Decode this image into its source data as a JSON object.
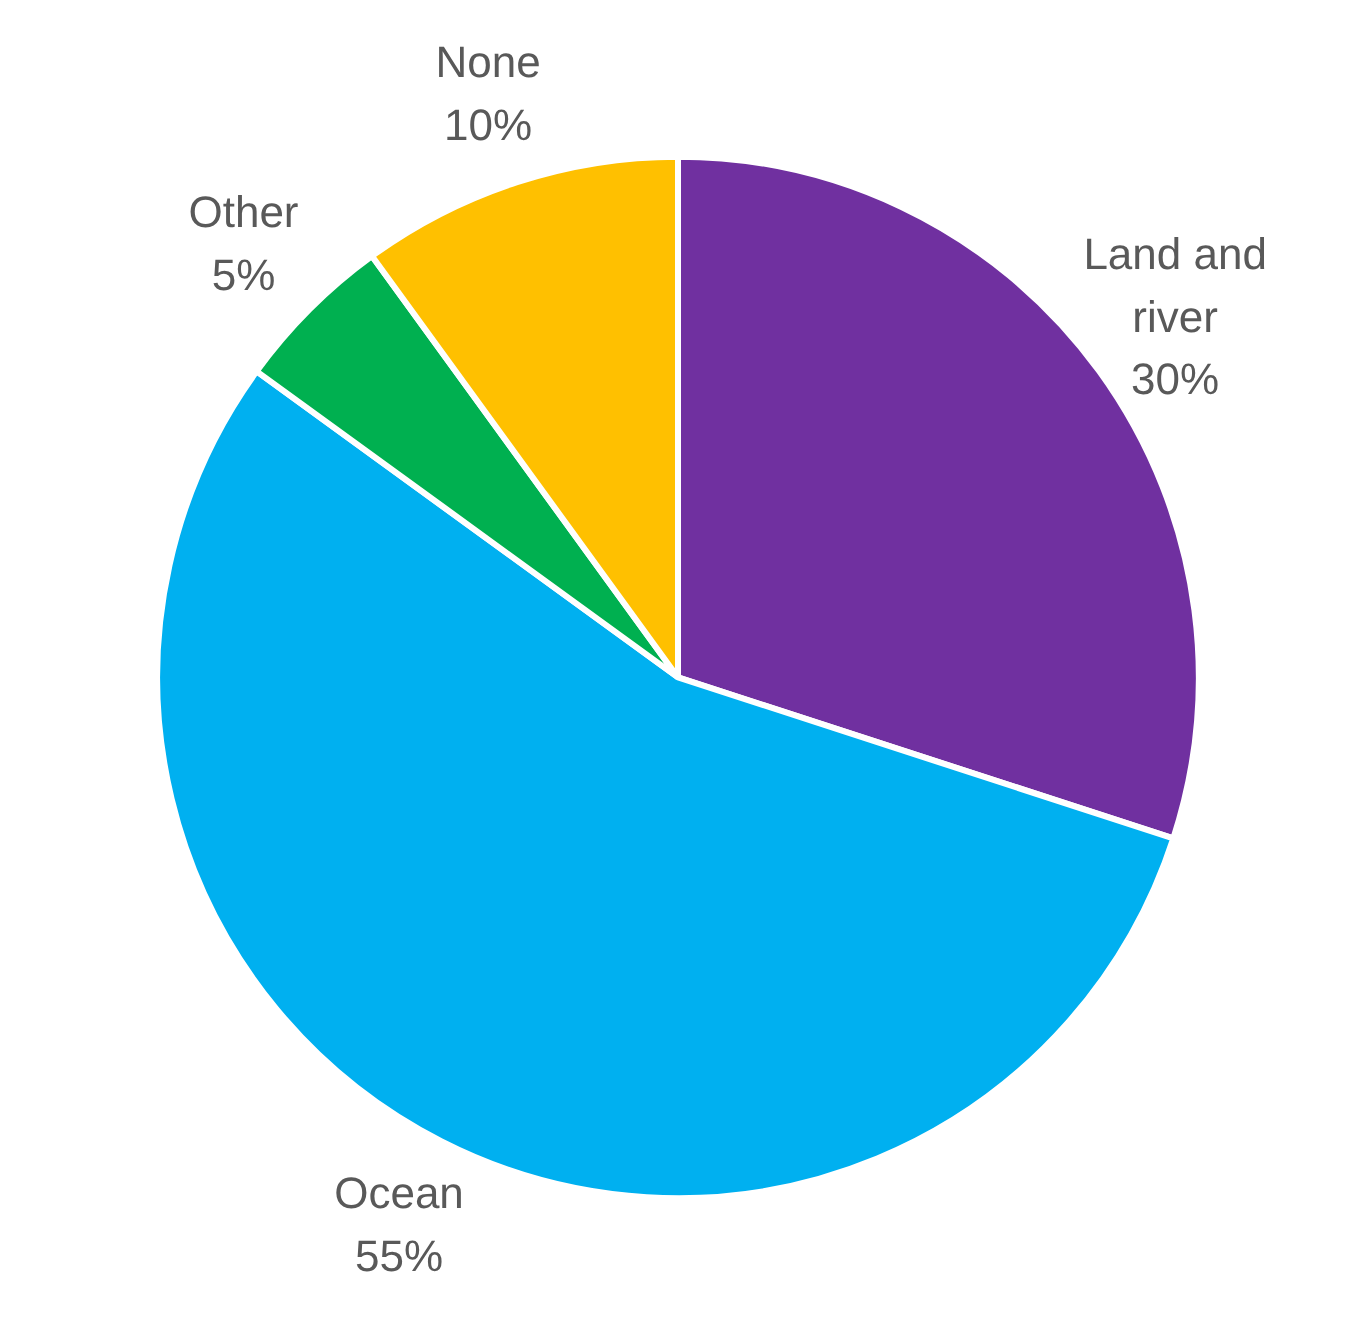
{
  "chart_data": {
    "type": "pie",
    "categories": [
      "Land and river",
      "Ocean",
      "Other",
      "None"
    ],
    "values": [
      30,
      55,
      5,
      10
    ],
    "value_labels": [
      "30%",
      "55%",
      "5%",
      "10%"
    ],
    "colors": [
      "#7030a0",
      "#00b0f0",
      "#00b050",
      "#ffc000"
    ]
  }
}
